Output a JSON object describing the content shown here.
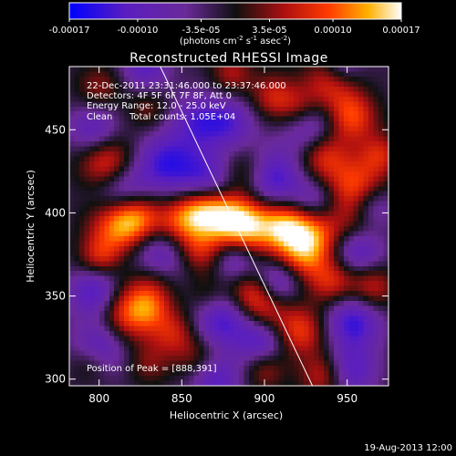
{
  "chart_data": {
    "type": "heatmap",
    "title": "Reconstructed RHESSI Image",
    "xlabel": "Heliocentric X (arcsec)",
    "ylabel": "Heliocentric Y (arcsec)",
    "xlim": [
      782,
      975
    ],
    "ylim": [
      296,
      488
    ],
    "xticks": [
      800,
      850,
      900,
      950
    ],
    "yticks": [
      300,
      350,
      400,
      450
    ],
    "colorbar": {
      "range": [
        -0.00017,
        0.00017
      ],
      "tick_labels": [
        "-0.00017",
        "-0.00010",
        "-3.5e-05",
        "3.5e-05",
        "0.00010",
        "0.00017"
      ],
      "tick_values": [
        -0.00017,
        -0.0001,
        -3.5e-05,
        3.5e-05,
        0.0001,
        0.00017
      ],
      "units_prefix": "(photons cm",
      "units_exp1": "-2",
      "units_mid": " s",
      "units_exp2": "-1",
      "units_mid2": " asec",
      "units_exp3": "-2",
      "units_suffix": ")"
    },
    "info": {
      "time_range": "22-Dec-2011 23:31:46.000 to 23:37:46.000",
      "detectors": "Detectors: 4F 5F 6F 7F 8F, Att 0",
      "energy": "Energy Range: 12.0 - 25.0 keV",
      "method": "Clean",
      "counts": "Total counts: 1.05E+04",
      "peak": "Position of Peak = [888,391]"
    },
    "peak": [
      888,
      391
    ],
    "limb_line": [
      [
        837,
        488
      ],
      [
        929,
        296
      ]
    ],
    "sources": [
      [
        888,
        393,
        0.00017,
        12
      ],
      [
        912,
        392,
        0.00014,
        11
      ],
      [
        930,
        388,
        0.00012,
        12
      ],
      [
        872,
        399,
        0.00011,
        11
      ],
      [
        812,
        393,
        0.00013,
        13
      ],
      [
        823,
        398,
        0.00011,
        11
      ],
      [
        805,
        430,
        0.00012,
        12
      ],
      [
        860,
        402,
        0.0001,
        10
      ],
      [
        848,
        394,
        9e-05,
        10
      ],
      [
        815,
        339,
        0.00012,
        13
      ],
      [
        833,
        360,
        9e-05,
        11
      ],
      [
        860,
        377,
        9e-05,
        10
      ],
      [
        845,
        328,
        8e-05,
        10
      ],
      [
        830,
        343,
        7e-05,
        9
      ],
      [
        921,
        329,
        0.00011,
        11
      ],
      [
        900,
        340,
        9e-05,
        10
      ],
      [
        922,
        372,
        0.0001,
        11
      ],
      [
        941,
        358,
        9e-05,
        10
      ],
      [
        890,
        352,
        8e-05,
        9
      ],
      [
        958,
        392,
        0.00011,
        11
      ],
      [
        965,
        355,
        9e-05,
        10
      ],
      [
        955,
        415,
        0.00012,
        12
      ],
      [
        935,
        435,
        0.00011,
        11
      ],
      [
        952,
        458,
        0.00012,
        11
      ],
      [
        940,
        480,
        0.0001,
        11
      ],
      [
        922,
        462,
        9e-05,
        10
      ],
      [
        905,
        470,
        8e-05,
        10
      ],
      [
        880,
        484,
        7e-05,
        9
      ],
      [
        936,
        302,
        9e-05,
        10
      ],
      [
        900,
        306,
        7e-05,
        9
      ],
      [
        800,
        373,
        8e-05,
        9
      ],
      [
        795,
        310,
        6e-05,
        9
      ],
      [
        830,
        309,
        5e-05,
        9
      ],
      [
        860,
        312,
        6e-05,
        10
      ],
      [
        888,
        425,
        7e-05,
        10
      ],
      [
        800,
        475,
        6e-05,
        10
      ],
      [
        830,
        462,
        5e-05,
        9
      ],
      [
        866,
        350,
        5e-05,
        9
      ],
      [
        970,
        435,
        8e-05,
        9
      ],
      [
        840,
        430,
        -0.00011,
        13
      ],
      [
        814,
        412,
        -0.00012,
        12
      ],
      [
        836,
        372,
        -0.00012,
        13
      ],
      [
        865,
        420,
        -0.0001,
        12
      ],
      [
        905,
        420,
        -0.00012,
        13
      ],
      [
        928,
        452,
        -0.00012,
        12
      ],
      [
        957,
        380,
        -0.00013,
        11
      ],
      [
        964,
        402,
        -0.00011,
        10
      ],
      [
        860,
        455,
        -9e-05,
        12
      ],
      [
        880,
        454,
        -8e-05,
        11
      ],
      [
        798,
        352,
        -0.00012,
        11
      ],
      [
        801,
        320,
        -0.00011,
        12
      ],
      [
        873,
        336,
        -0.00011,
        12
      ],
      [
        898,
        324,
        -0.00011,
        11
      ],
      [
        954,
        335,
        -0.00012,
        12
      ],
      [
        952,
        305,
        -0.0001,
        11
      ],
      [
        910,
        360,
        -9e-05,
        10
      ],
      [
        870,
        300,
        -0.0001,
        11
      ],
      [
        930,
        406,
        -8e-05,
        10
      ],
      [
        828,
        488,
        -9e-05,
        10
      ],
      [
        946,
        488,
        -8e-05,
        9
      ],
      [
        797,
        450,
        -9e-05,
        11
      ],
      [
        882,
        372,
        -8e-05,
        9
      ]
    ]
  },
  "footer": {
    "date": "19-Aug-2013 12:00"
  }
}
